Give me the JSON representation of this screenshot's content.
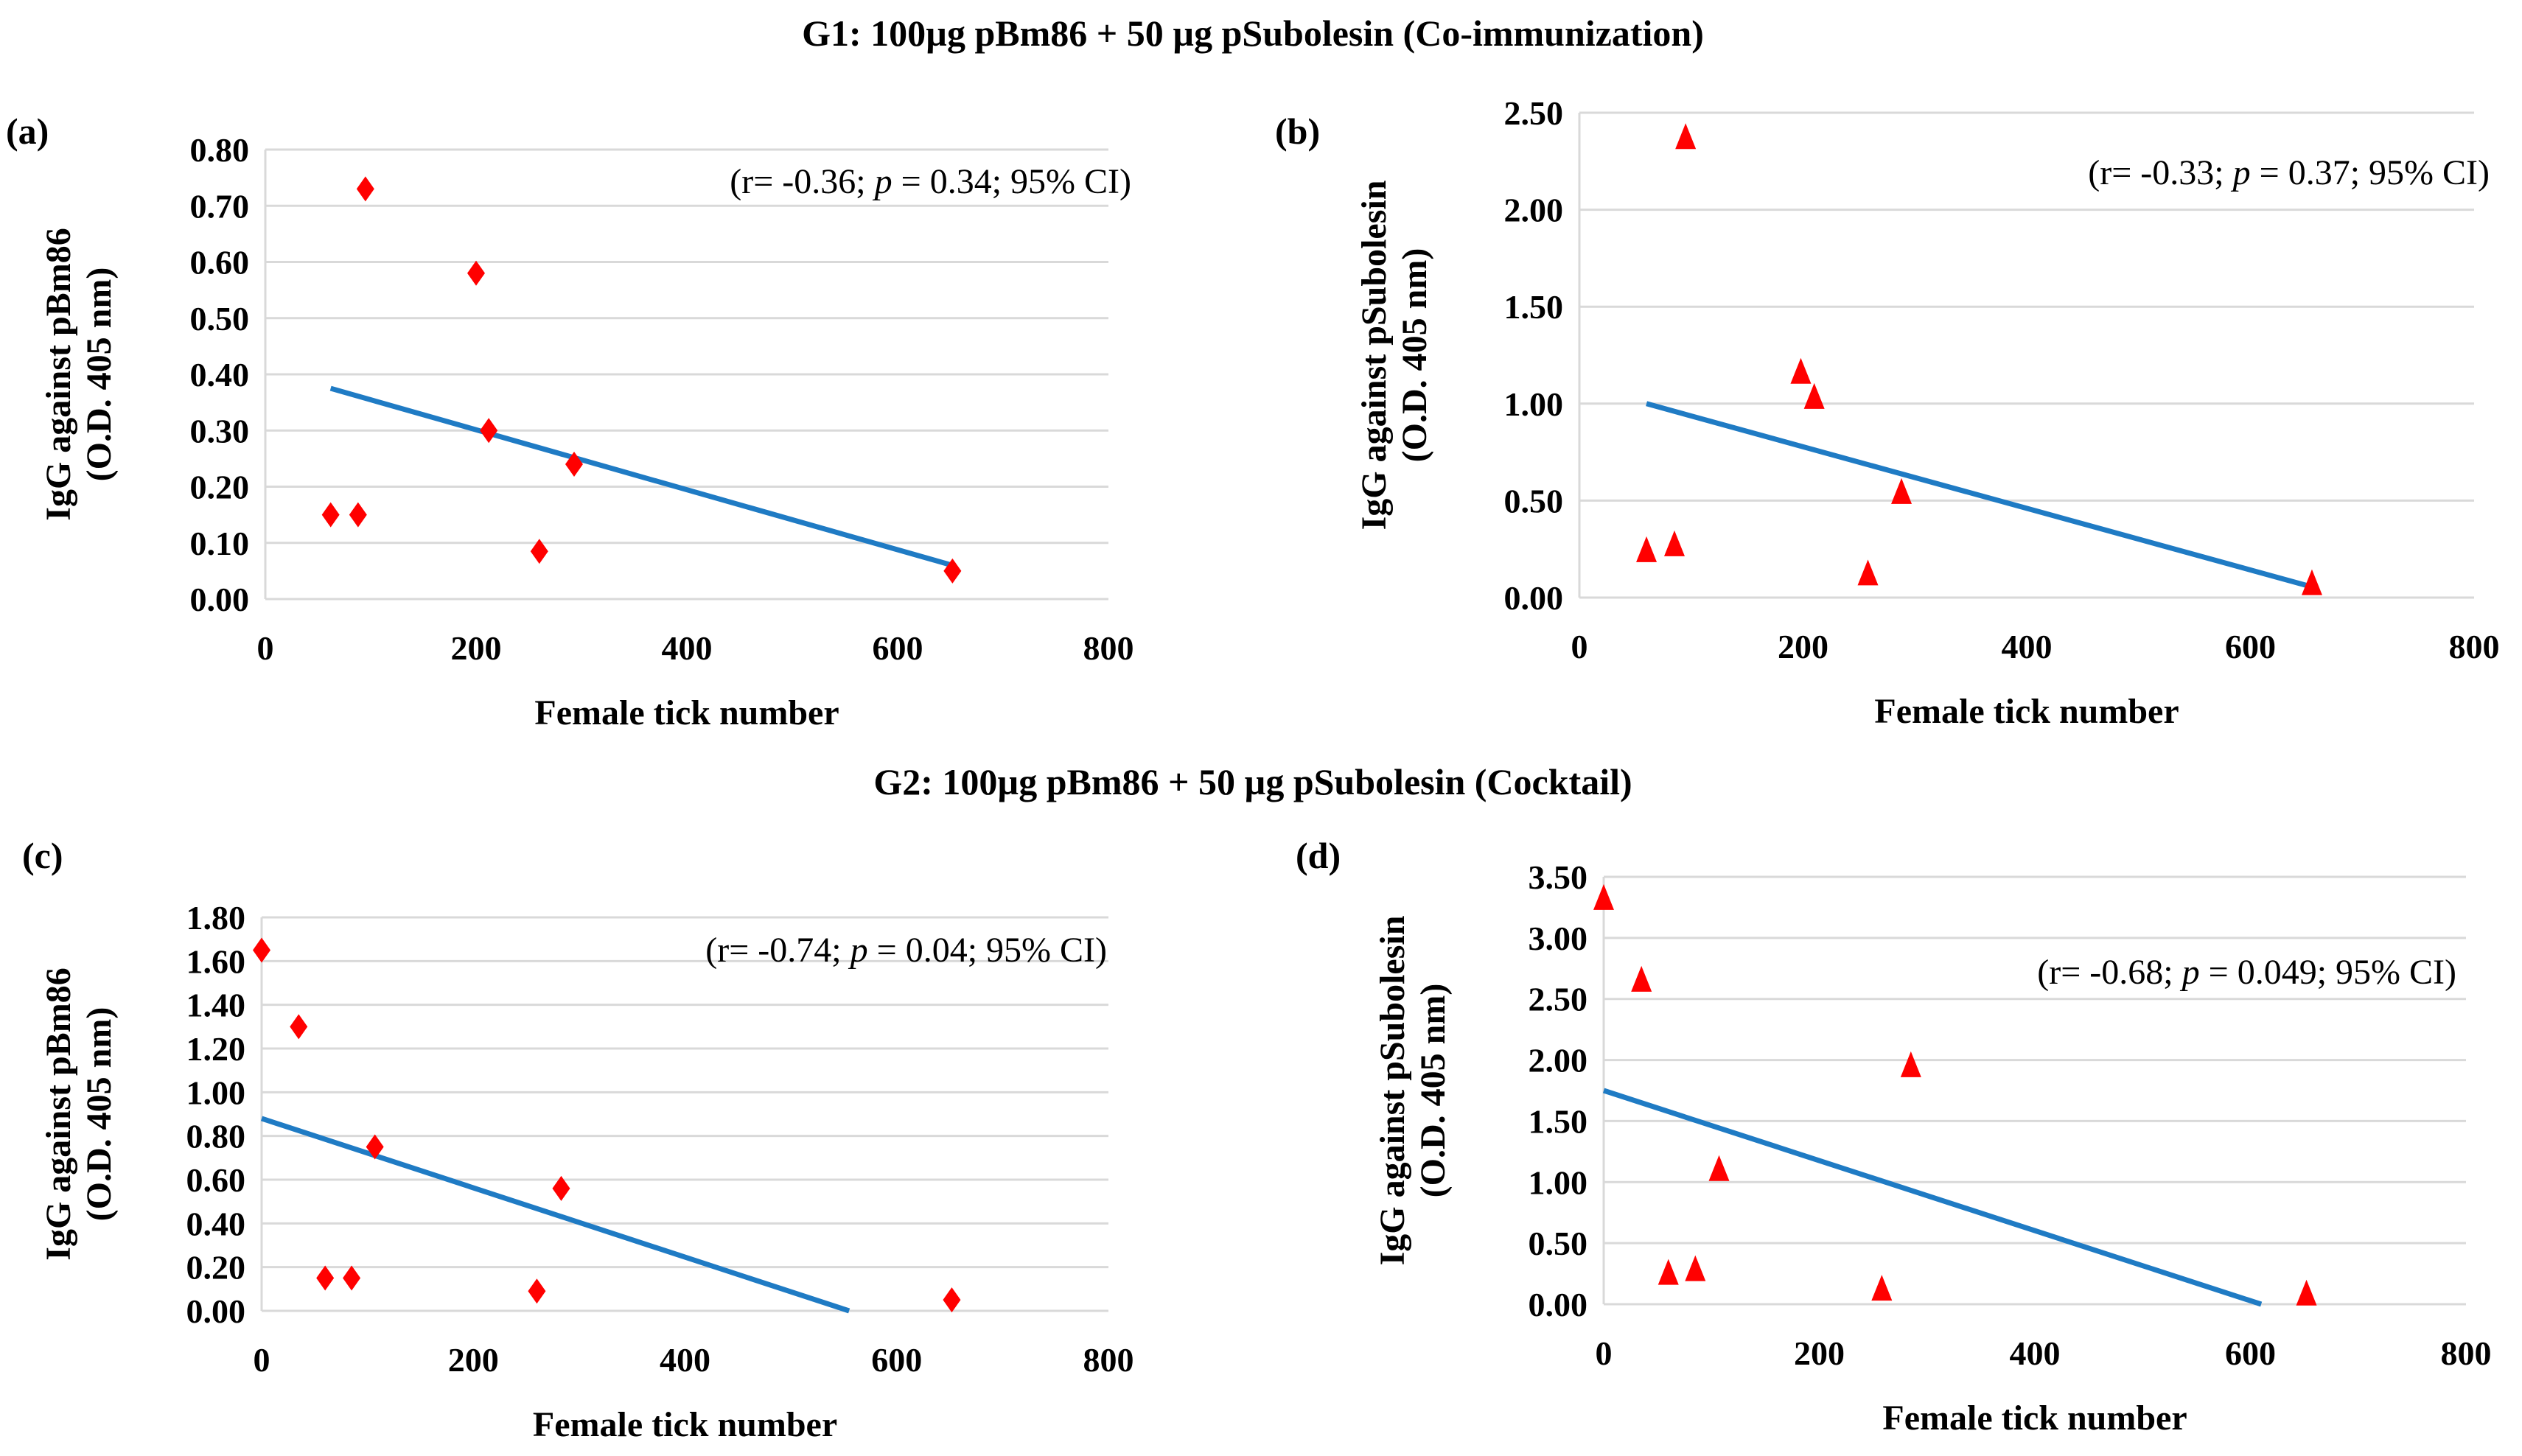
{
  "titles": {
    "g1": "G1: 100µg pBm86 + 50 µg pSubolesin  (Co-immunization)",
    "g2": "G2: 100µg pBm86 + 50 µg pSubolesin (Cocktail)"
  },
  "colors": {
    "marker": "#ff0000",
    "trend": "#1f7bc4",
    "grid": "#d9d9d9"
  },
  "chart_data": [
    {
      "type": "scatter",
      "panel": "(a)",
      "marker": "diamond",
      "xlabel": "Female tick number",
      "ylabel": [
        "IgG against pBm86",
        "(O.D.  405 nm)"
      ],
      "xlim": [
        0,
        800
      ],
      "ylim": [
        0,
        0.8
      ],
      "xticks": [
        "0",
        "200",
        "400",
        "600",
        "800"
      ],
      "yticks": [
        "0.00",
        "0.10",
        "0.20",
        "0.30",
        "0.40",
        "0.50",
        "0.60",
        "0.70",
        "0.80"
      ],
      "points": [
        [
          62,
          0.15
        ],
        [
          88,
          0.15
        ],
        [
          95,
          0.73
        ],
        [
          200,
          0.58
        ],
        [
          212,
          0.3
        ],
        [
          260,
          0.085
        ],
        [
          293,
          0.24
        ],
        [
          652,
          0.05
        ]
      ],
      "trendline": [
        [
          62,
          0.375
        ],
        [
          652,
          0.06
        ]
      ],
      "stats": {
        "r": "-0.36",
        "p": "0.34",
        "ci": "95% CI"
      }
    },
    {
      "type": "scatter",
      "panel": "(b)",
      "marker": "triangle",
      "xlabel": "Female tick number",
      "ylabel": [
        "IgG against pSubolesin",
        "(O.D.  405 nm)"
      ],
      "xlim": [
        0,
        800
      ],
      "ylim": [
        0,
        2.5
      ],
      "xticks": [
        "0",
        "200",
        "400",
        "600",
        "800"
      ],
      "yticks": [
        "0.00",
        "0.50",
        "1.00",
        "1.50",
        "2.00",
        "2.50"
      ],
      "points": [
        [
          60,
          0.24
        ],
        [
          85,
          0.27
        ],
        [
          95,
          2.37
        ],
        [
          198,
          1.16
        ],
        [
          210,
          1.03
        ],
        [
          258,
          0.12
        ],
        [
          288,
          0.54
        ],
        [
          655,
          0.07
        ]
      ],
      "trendline": [
        [
          60,
          1.0
        ],
        [
          652,
          0.06
        ]
      ],
      "stats": {
        "r": "-0.33",
        "p": "0.37",
        "ci": "95% CI"
      }
    },
    {
      "type": "scatter",
      "panel": "(c)",
      "marker": "diamond",
      "xlabel": "Female tick number",
      "ylabel": [
        "IgG against pBm86",
        "(O.D.  405 nm)"
      ],
      "xlim": [
        0,
        800
      ],
      "ylim": [
        0,
        1.8
      ],
      "xticks": [
        "0",
        "200",
        "400",
        "600",
        "800"
      ],
      "yticks": [
        "0.00",
        "0.20",
        "0.40",
        "0.60",
        "0.80",
        "1.00",
        "1.20",
        "1.40",
        "1.60",
        "1.80"
      ],
      "points": [
        [
          0,
          1.65
        ],
        [
          35,
          1.3
        ],
        [
          60,
          0.15
        ],
        [
          85,
          0.15
        ],
        [
          107,
          0.75
        ],
        [
          260,
          0.09
        ],
        [
          283,
          0.56
        ],
        [
          652,
          0.05
        ]
      ],
      "trendline": [
        [
          0,
          0.88
        ],
        [
          555,
          0.0
        ]
      ],
      "stats": {
        "r": "-0.74",
        "p": "0.04",
        "ci": "95% CI"
      }
    },
    {
      "type": "scatter",
      "panel": "(d)",
      "marker": "triangle",
      "xlabel": "Female tick number",
      "ylabel": [
        "IgG against pSubolesin",
        "(O.D.  405 nm)"
      ],
      "xlim": [
        0,
        800
      ],
      "ylim": [
        0,
        3.5
      ],
      "xticks": [
        "0",
        "200",
        "400",
        "600",
        "800"
      ],
      "yticks": [
        "0.00",
        "0.50",
        "1.00",
        "1.50",
        "2.00",
        "2.50",
        "3.00",
        "3.50"
      ],
      "points": [
        [
          0,
          3.32
        ],
        [
          35,
          2.65
        ],
        [
          60,
          0.25
        ],
        [
          85,
          0.28
        ],
        [
          107,
          1.1
        ],
        [
          258,
          0.12
        ],
        [
          285,
          1.95
        ],
        [
          652,
          0.08
        ]
      ],
      "trendline": [
        [
          0,
          1.75
        ],
        [
          610,
          0.0
        ]
      ],
      "stats": {
        "r": "-0.68",
        "p": "0.049",
        "ci": "95% CI"
      }
    }
  ]
}
